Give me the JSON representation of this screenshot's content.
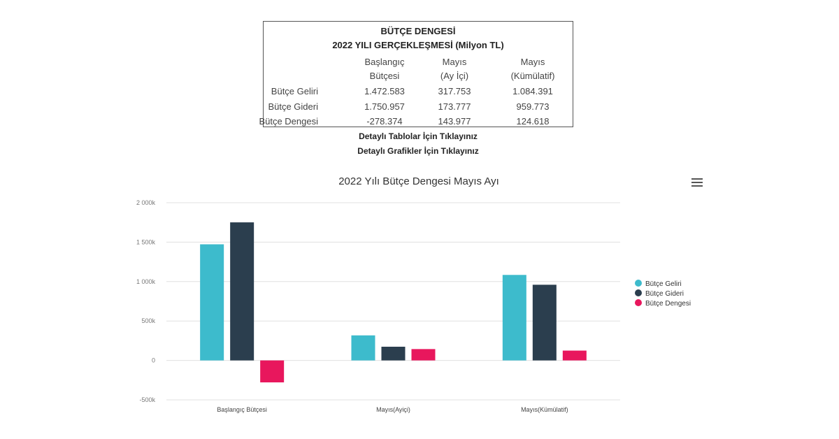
{
  "summary": {
    "title": "BÜTÇE DENGESİ",
    "subtitle": "2022 YILI GERÇEKLEŞMESİ (Milyon TL)",
    "col_headers": [
      [
        "Başlangıç",
        "Bütçesi"
      ],
      [
        "Mayıs",
        "(Ay İçi)"
      ],
      [
        "Mayıs",
        "(Kümülatif)"
      ]
    ],
    "rows": [
      {
        "label": "Bütçe Geliri",
        "values": [
          "1.472.583",
          "317.753",
          "1.084.391"
        ]
      },
      {
        "label": "Bütçe Gideri",
        "values": [
          "1.750.957",
          "173.777",
          "959.773"
        ]
      },
      {
        "label": "Bütçe Dengesi",
        "values": [
          "-278.374",
          "143.977",
          "124.618"
        ]
      }
    ]
  },
  "links": {
    "tables": "Detaylı Tablolar İçin Tıklayınız",
    "charts": "Detaylı Grafikler İçin Tıklayınız"
  },
  "chart_data": {
    "type": "bar",
    "title": "2022 Yılı Bütçe Dengesi Mayıs Ayı",
    "categories": [
      "Başlangıç Bütçesi",
      "Mayıs(Ayiçi)",
      "Mayıs(Kümülatif)"
    ],
    "series": [
      {
        "name": "Bütçe Geliri",
        "color": "#3dbbcc",
        "values": [
          1472583,
          317753,
          1084391
        ]
      },
      {
        "name": "Bütçe Gideri",
        "color": "#2b3e4e",
        "values": [
          1750957,
          173777,
          959773
        ]
      },
      {
        "name": "Bütçe Dengesi",
        "color": "#e8175d",
        "values": [
          -278374,
          143977,
          124618
        ]
      }
    ],
    "yticks": [
      {
        "value": 2000000,
        "label": "2 000k"
      },
      {
        "value": 1500000,
        "label": "1 500k"
      },
      {
        "value": 1000000,
        "label": "1 000k"
      },
      {
        "value": 500000,
        "label": "500k"
      },
      {
        "value": 0,
        "label": "0"
      },
      {
        "value": -500000,
        "label": "-500k"
      }
    ],
    "ylim": [
      -500000,
      2000000
    ],
    "grid": true,
    "legend_position": "right"
  }
}
